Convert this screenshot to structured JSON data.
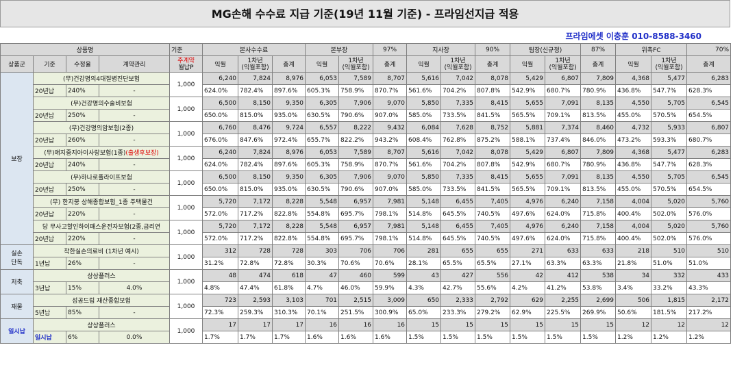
{
  "title": "MG손해 수수료 지급 기준(19년 11월 기준) - 프라임선지급 적용",
  "contact": "프라임에셋 이충훈 010-8588-3460",
  "header": {
    "product_group": "상품명",
    "base": "기준",
    "groups": [
      {
        "name": "본사수수료",
        "rate": ""
      },
      {
        "name": "본부장",
        "rate": "97%"
      },
      {
        "name": "지사장",
        "rate": "90%"
      },
      {
        "name": "팀장(신규정)",
        "rate": "87%"
      },
      {
        "name": "위촉FC",
        "rate": "70%"
      }
    ],
    "sub": {
      "category": "상품군",
      "standard": "기준",
      "collection_rate": "수정율",
      "contract_mgmt": "계약관리",
      "premium_line1": "주계약",
      "premium_line2": "월납P",
      "month": "익월",
      "year1_line1": "1차년",
      "year1_line2": "(익월포함)",
      "total": "총계"
    }
  },
  "sections": [
    {
      "category": "보장",
      "highlight": false,
      "products": [
        {
          "name": "(무)건강명의4대질병진단보험",
          "suffix": "",
          "std": "20년납",
          "rate": "240%",
          "mgmt": "-",
          "base": "1,000",
          "nums": [
            "6,240",
            "7,824",
            "8,976",
            "6,053",
            "7,589",
            "8,707",
            "5,616",
            "7,042",
            "8,078",
            "5,429",
            "6,807",
            "7,809",
            "4,368",
            "5,477",
            "6,283"
          ],
          "pcts": [
            "624.0%",
            "782.4%",
            "897.6%",
            "605.3%",
            "758.9%",
            "870.7%",
            "561.6%",
            "704.2%",
            "807.8%",
            "542.9%",
            "680.7%",
            "780.9%",
            "436.8%",
            "547.7%",
            "628.3%"
          ]
        },
        {
          "name": "(무)건강명의수술비보험",
          "suffix": "",
          "std": "20년납",
          "rate": "250%",
          "mgmt": "-",
          "base": "1,000",
          "nums": [
            "6,500",
            "8,150",
            "9,350",
            "6,305",
            "7,906",
            "9,070",
            "5,850",
            "7,335",
            "8,415",
            "5,655",
            "7,091",
            "8,135",
            "4,550",
            "5,705",
            "6,545"
          ],
          "pcts": [
            "650.0%",
            "815.0%",
            "935.0%",
            "630.5%",
            "790.6%",
            "907.0%",
            "585.0%",
            "733.5%",
            "841.5%",
            "565.5%",
            "709.1%",
            "813.5%",
            "455.0%",
            "570.5%",
            "654.5%"
          ]
        },
        {
          "name": "(무)건강명의암보험(2종)",
          "suffix": "",
          "std": "20년납",
          "rate": "260%",
          "mgmt": "-",
          "base": "1,000",
          "nums": [
            "6,760",
            "8,476",
            "9,724",
            "6,557",
            "8,222",
            "9,432",
            "6,084",
            "7,628",
            "8,752",
            "5,881",
            "7,374",
            "8,460",
            "4,732",
            "5,933",
            "6,807"
          ],
          "pcts": [
            "676.0%",
            "847.6%",
            "972.4%",
            "655.7%",
            "822.2%",
            "943.2%",
            "608.4%",
            "762.8%",
            "875.2%",
            "588.1%",
            "737.4%",
            "846.0%",
            "473.2%",
            "593.3%",
            "680.7%"
          ]
        },
        {
          "name": "(무)애지중지아이사랑보험(1종)",
          "suffix": "(출생후보장)",
          "std": "20년납",
          "rate": "240%",
          "mgmt": "-",
          "base": "1,000",
          "nums": [
            "6,240",
            "7,824",
            "8,976",
            "6,053",
            "7,589",
            "8,707",
            "5,616",
            "7,042",
            "8,078",
            "5,429",
            "6,807",
            "7,809",
            "4,368",
            "5,477",
            "6,283"
          ],
          "pcts": [
            "624.0%",
            "782.4%",
            "897.6%",
            "605.3%",
            "758.9%",
            "870.7%",
            "561.6%",
            "704.2%",
            "807.8%",
            "542.9%",
            "680.7%",
            "780.9%",
            "436.8%",
            "547.7%",
            "628.3%"
          ]
        },
        {
          "name": "(무)하나로플라이프보험",
          "suffix": "",
          "std": "20년납",
          "rate": "250%",
          "mgmt": "-",
          "base": "1,000",
          "nums": [
            "6,500",
            "8,150",
            "9,350",
            "6,305",
            "7,906",
            "9,070",
            "5,850",
            "7,335",
            "8,415",
            "5,655",
            "7,091",
            "8,135",
            "4,550",
            "5,705",
            "6,545"
          ],
          "pcts": [
            "650.0%",
            "815.0%",
            "935.0%",
            "630.5%",
            "790.6%",
            "907.0%",
            "585.0%",
            "733.5%",
            "841.5%",
            "565.5%",
            "709.1%",
            "813.5%",
            "455.0%",
            "570.5%",
            "654.5%"
          ]
        },
        {
          "name": "(무) 한지붕 상해종합보험_1종 주택물건",
          "suffix": "",
          "std": "20년납",
          "rate": "220%",
          "mgmt": "-",
          "base": "1,000",
          "nums": [
            "5,720",
            "7,172",
            "8,228",
            "5,548",
            "6,957",
            "7,981",
            "5,148",
            "6,455",
            "7,405",
            "4,976",
            "6,240",
            "7,158",
            "4,004",
            "5,020",
            "5,760"
          ],
          "pcts": [
            "572.0%",
            "717.2%",
            "822.8%",
            "554.8%",
            "695.7%",
            "798.1%",
            "514.8%",
            "645.5%",
            "740.5%",
            "497.6%",
            "624.0%",
            "715.8%",
            "400.4%",
            "502.0%",
            "576.0%"
          ]
        },
        {
          "name": "당 무사고할인하이패스운전자보험(2종,금리연",
          "suffix": "",
          "std": "20년납",
          "rate": "220%",
          "mgmt": "-",
          "base": "1,000",
          "nums": [
            "5,720",
            "7,172",
            "8,228",
            "5,548",
            "6,957",
            "7,981",
            "5,148",
            "6,455",
            "7,405",
            "4,976",
            "6,240",
            "7,158",
            "4,004",
            "5,020",
            "5,760"
          ],
          "pcts": [
            "572.0%",
            "717.2%",
            "822.8%",
            "554.8%",
            "695.7%",
            "798.1%",
            "514.8%",
            "645.5%",
            "740.5%",
            "497.6%",
            "624.0%",
            "715.8%",
            "400.4%",
            "502.0%",
            "576.0%"
          ]
        }
      ]
    },
    {
      "category": "실손\n단독",
      "highlight": false,
      "products": [
        {
          "name": "착한실손의료비 (1차년 예시)",
          "suffix": "",
          "std": "1년납",
          "rate": "26%",
          "mgmt": "-",
          "base": "1,000",
          "nums": [
            "312",
            "728",
            "728",
            "303",
            "706",
            "706",
            "281",
            "655",
            "655",
            "271",
            "633",
            "633",
            "218",
            "510",
            "510"
          ],
          "pcts": [
            "31.2%",
            "72.8%",
            "72.8%",
            "30.3%",
            "70.6%",
            "70.6%",
            "28.1%",
            "65.5%",
            "65.5%",
            "27.1%",
            "63.3%",
            "63.3%",
            "21.8%",
            "51.0%",
            "51.0%"
          ]
        }
      ]
    },
    {
      "category": "저축",
      "highlight": false,
      "products": [
        {
          "name": "상상플러스",
          "suffix": "",
          "std": "3년납",
          "rate": "15%",
          "mgmt": "4.0%",
          "base": "1,000",
          "nums": [
            "48",
            "474",
            "618",
            "47",
            "460",
            "599",
            "43",
            "427",
            "556",
            "42",
            "412",
            "538",
            "34",
            "332",
            "433"
          ],
          "pcts": [
            "4.8%",
            "47.4%",
            "61.8%",
            "4.7%",
            "46.0%",
            "59.9%",
            "4.3%",
            "42.7%",
            "55.6%",
            "4.2%",
            "41.2%",
            "53.8%",
            "3.4%",
            "33.2%",
            "43.3%"
          ]
        }
      ]
    },
    {
      "category": "재물",
      "highlight": false,
      "products": [
        {
          "name": "성공드림 재산종합보험",
          "suffix": "",
          "std": "5년납",
          "rate": "85%",
          "mgmt": "-",
          "base": "1,000",
          "nums": [
            "723",
            "2,593",
            "3,103",
            "701",
            "2,515",
            "3,009",
            "650",
            "2,333",
            "2,792",
            "629",
            "2,255",
            "2,699",
            "506",
            "1,815",
            "2,172"
          ],
          "pcts": [
            "72.3%",
            "259.3%",
            "310.3%",
            "70.1%",
            "251.5%",
            "300.9%",
            "65.0%",
            "233.3%",
            "279.2%",
            "62.9%",
            "225.5%",
            "269.9%",
            "50.6%",
            "181.5%",
            "217.2%"
          ]
        }
      ]
    },
    {
      "category": "일시납",
      "highlight": true,
      "products": [
        {
          "name": "상상플러스",
          "suffix": "",
          "std": "일시납",
          "rate": "6%",
          "mgmt": "0.0%",
          "base": "1,000",
          "nums": [
            "17",
            "17",
            "17",
            "16",
            "16",
            "16",
            "15",
            "15",
            "15",
            "15",
            "15",
            "15",
            "12",
            "12",
            "12"
          ],
          "pcts": [
            "1.7%",
            "1.7%",
            "1.7%",
            "1.6%",
            "1.6%",
            "1.6%",
            "1.5%",
            "1.5%",
            "1.5%",
            "1.5%",
            "1.5%",
            "1.5%",
            "1.2%",
            "1.2%",
            "1.2%"
          ]
        }
      ]
    }
  ]
}
